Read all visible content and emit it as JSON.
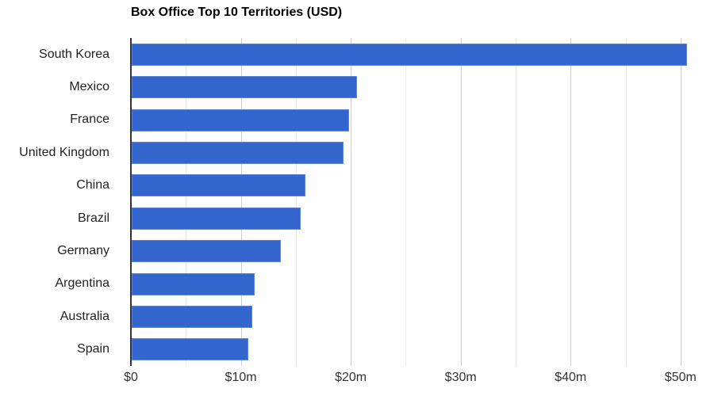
{
  "chart": {
    "title": "Box Office Top 10 Territories (USD)"
  },
  "chart_data": {
    "type": "bar",
    "orientation": "horizontal",
    "title": "Box Office Top 10 Territories (USD)",
    "categories": [
      "South Korea",
      "Mexico",
      "France",
      "United Kingdom",
      "China",
      "Brazil",
      "Germany",
      "Argentina",
      "Australia",
      "Spain"
    ],
    "values": [
      50.5,
      20.5,
      19.8,
      19.3,
      15.8,
      15.4,
      13.6,
      11.2,
      11.0,
      10.6
    ],
    "values_unit": "USD millions",
    "xlabel": "",
    "ylabel": "",
    "xlim": [
      0,
      51.6
    ],
    "x_ticks": [
      0,
      10,
      20,
      30,
      40,
      50
    ],
    "x_tick_labels": [
      "$0",
      "$10m",
      "$20m",
      "$30m",
      "$40m",
      "$50m"
    ],
    "x_minor_ticks": [
      5,
      15,
      25,
      35,
      45
    ],
    "grid": true,
    "legend": "none",
    "bar_color": "#3366cc",
    "major_grid_color": "#cccccc",
    "minor_grid_color": "#ebebeb",
    "axis_line_color": "#333333",
    "title_color": "#000000",
    "label_color": "#222222",
    "tick_label_color": "#333333"
  }
}
